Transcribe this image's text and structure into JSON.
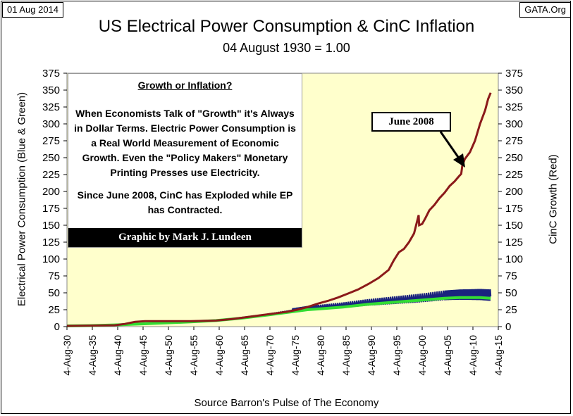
{
  "header": {
    "date": "01 Aug 2014",
    "source": "GATA.Org"
  },
  "note": {
    "heading": "Growth or Inflation?",
    "paragraph1": "When Economists Talk of \"Growth\" it's Always in Dollar Terms.  Electric Power Consumption is a Real World Measurement of Economic Growth.  Even the \"Policy Makers\" Monetary Printing Presses use Electricity.",
    "paragraph2": "Since June 2008, CinC has Exploded while EP has Contracted.",
    "credit": "Graphic by Mark J. Lundeen"
  },
  "colors": {
    "plot_background": "#ffffcc",
    "blue_series": "#1a237e",
    "green_series": "#33dd33",
    "red_series": "#8b1a1a"
  },
  "chart_data": {
    "type": "line",
    "title": "US Electrical Power Consumption & CinC Inflation",
    "subtitle": "04 August 1930 = 1.00",
    "xlabel": "Source Barron's Pulse of The Economy",
    "ylabel_left": "Electrical Power Consumption   (Blue & Green)",
    "ylabel_right": "CinC Growth   (Red)",
    "ylim": [
      0,
      375
    ],
    "xlim": [
      1930.6,
      2015.6
    ],
    "y_ticks": [
      0,
      25,
      50,
      75,
      100,
      125,
      150,
      175,
      200,
      225,
      250,
      275,
      300,
      325,
      350,
      375
    ],
    "x_ticks": [
      1930.6,
      1935.6,
      1940.6,
      1945.6,
      1950.6,
      1955.6,
      1960.6,
      1965.6,
      1970.6,
      1975.6,
      1980.6,
      1985.6,
      1990.6,
      1995.6,
      2000.6,
      2005.6,
      2010.6,
      2015.6
    ],
    "x_tick_labels": [
      "4-Aug-30",
      "4-Aug-35",
      "4-Aug-40",
      "4-Aug-45",
      "4-Aug-50",
      "4-Aug-55",
      "4-Aug-60",
      "4-Aug-65",
      "4-Aug-70",
      "4-Aug-75",
      "4-Aug-80",
      "4-Aug-85",
      "4-Aug-90",
      "4-Aug-95",
      "4-Aug-00",
      "4-Aug-05",
      "4-Aug-10",
      "4-Aug-15"
    ],
    "annotations": [
      {
        "text": "June 2008",
        "x": 2008.45,
        "y": 240
      }
    ],
    "grid": false,
    "series": [
      {
        "key": "red",
        "x": [
          1930.6,
          1935,
          1940,
          1942,
          1944,
          1946,
          1950,
          1955,
          1960,
          1963,
          1965,
          1968,
          1970,
          1972,
          1974,
          1976,
          1978,
          1980,
          1982,
          1984,
          1986,
          1988,
          1990,
          1992,
          1994,
          1995,
          1996,
          1997,
          1998,
          1999,
          1999.9,
          2000.0,
          2000.6,
          2001.2,
          2002,
          2003,
          2004,
          2005,
          2006,
          2007,
          2007.8,
          2008.3,
          2008.5,
          2009,
          2010,
          2011,
          2012,
          2013,
          2013.6,
          2014.1
        ],
        "y": [
          1,
          1.5,
          2,
          4,
          7,
          8,
          8,
          8,
          9,
          11,
          13,
          16,
          18,
          20,
          22,
          25,
          29,
          34,
          38,
          43,
          49,
          55,
          63,
          72,
          84,
          98,
          110,
          115,
          125,
          138,
          165,
          150,
          152,
          160,
          172,
          180,
          190,
          198,
          208,
          215,
          222,
          226,
          238,
          248,
          258,
          275,
          300,
          320,
          337,
          346
        ]
      },
      {
        "key": "blue",
        "x": [
          1930.6,
          1935,
          1940,
          1945,
          1950,
          1955,
          1960,
          1965,
          1970,
          1975,
          1978,
          1980,
          1985,
          1990,
          1995,
          2000,
          2005,
          2008,
          2010,
          2012,
          2014.1
        ],
        "y": [
          1,
          1.5,
          2.5,
          4,
          5.5,
          7,
          9,
          13,
          18,
          24,
          27,
          28,
          31,
          35,
          38,
          41,
          45,
          46,
          46,
          46,
          45
        ]
      },
      {
        "key": "green",
        "x": [
          1930.6,
          1935,
          1940,
          1945,
          1950,
          1955,
          1960,
          1965,
          1970,
          1975,
          1978,
          1980,
          1985,
          1990,
          1995,
          2000,
          2005,
          2008,
          2010,
          2012,
          2014.1
        ],
        "y": [
          1,
          1.5,
          2.5,
          4,
          5.5,
          7,
          9,
          12.5,
          17,
          22,
          25,
          26,
          29,
          33,
          36,
          39,
          42,
          43,
          43,
          43,
          42
        ]
      }
    ]
  }
}
